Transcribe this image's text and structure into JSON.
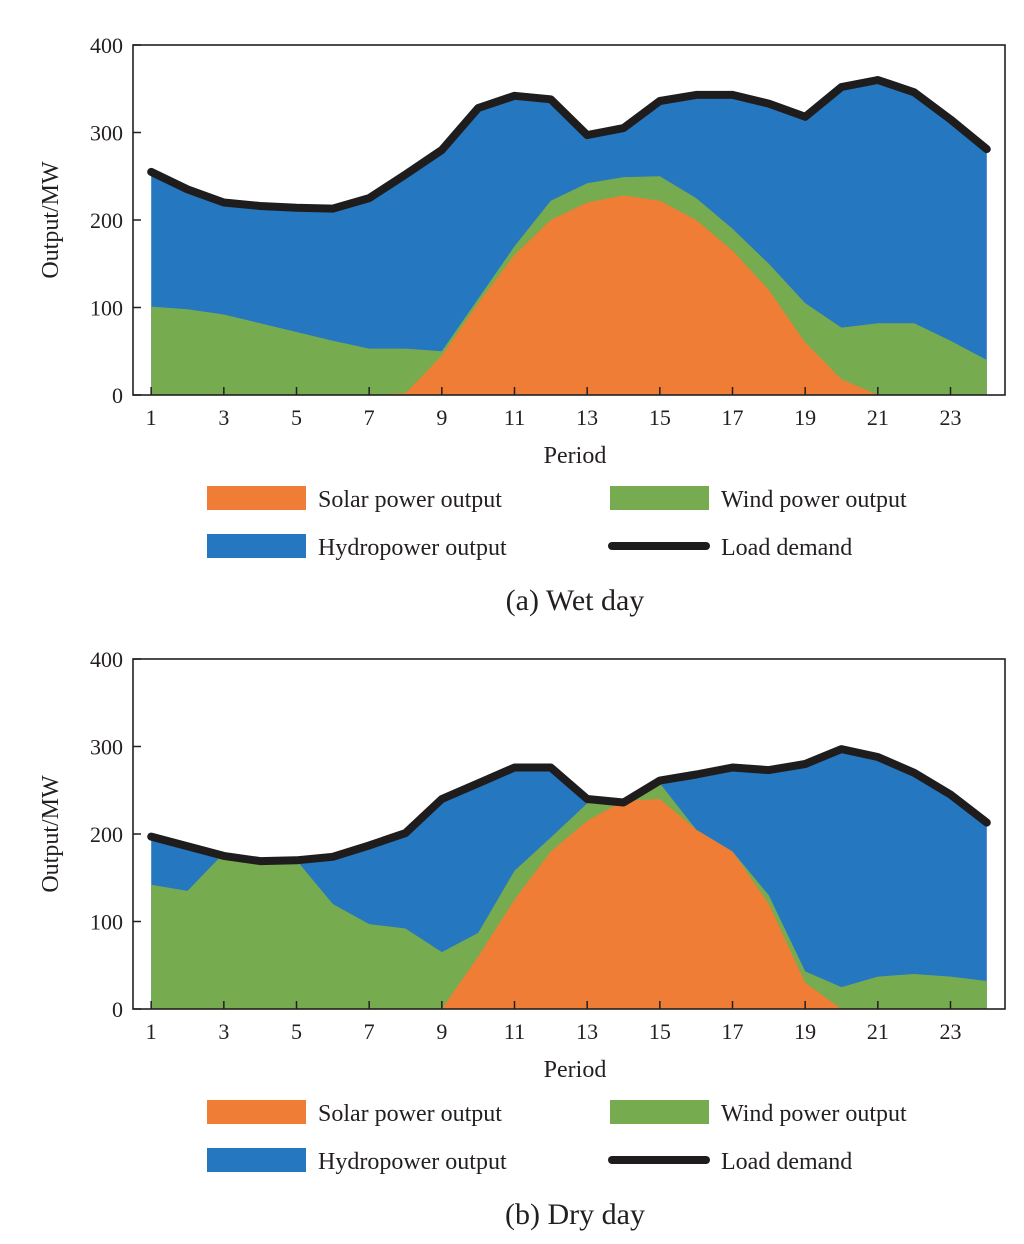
{
  "colors": {
    "solar": "#ef7d35",
    "wind": "#77ab50",
    "hydro": "#2577bf",
    "load": "#1f1c1d"
  },
  "chart_data": [
    {
      "type": "area",
      "title": "(a) Wet day",
      "xlabel": "Period",
      "ylabel": "Output/MW",
      "xlim": [
        0.5,
        24.5
      ],
      "ylim": [
        0,
        400
      ],
      "xticks": [
        1,
        3,
        5,
        7,
        9,
        11,
        13,
        15,
        17,
        19,
        21,
        23
      ],
      "yticks": [
        0,
        100,
        200,
        300,
        400
      ],
      "x": [
        1,
        2,
        3,
        4,
        5,
        6,
        7,
        8,
        9,
        10,
        11,
        12,
        13,
        14,
        15,
        16,
        17,
        18,
        19,
        20,
        21,
        22,
        23,
        24
      ],
      "series": [
        {
          "name": "Solar power output",
          "key": "solar",
          "kind": "area",
          "values": [
            0,
            0,
            0,
            0,
            0,
            0,
            0,
            2,
            45,
            105,
            160,
            200,
            220,
            228,
            222,
            200,
            165,
            120,
            60,
            18,
            0,
            0,
            0,
            0
          ]
        },
        {
          "name": "Wind power output",
          "key": "wind",
          "kind": "area",
          "values": [
            101,
            98,
            92,
            82,
            72,
            62,
            53,
            53,
            50,
            110,
            170,
            222,
            242,
            249,
            250,
            225,
            190,
            150,
            105,
            77,
            82,
            82,
            62,
            40
          ]
        },
        {
          "name": "Hydropower output",
          "key": "hydro",
          "kind": "area",
          "values": [
            255,
            235,
            220,
            216,
            214,
            213,
            225,
            252,
            280,
            328,
            342,
            338,
            297,
            305,
            336,
            343,
            343,
            333,
            318,
            352,
            360,
            346,
            315,
            281
          ]
        },
        {
          "name": "Load demand",
          "key": "load",
          "kind": "line",
          "values": [
            255,
            235,
            220,
            216,
            214,
            213,
            225,
            252,
            280,
            328,
            342,
            338,
            297,
            305,
            336,
            343,
            343,
            333,
            318,
            352,
            360,
            346,
            315,
            281
          ]
        }
      ],
      "legend": [
        "Solar power output",
        "Wind power output",
        "Hydropower output",
        "Load demand"
      ]
    },
    {
      "type": "area",
      "title": "(b) Dry day",
      "xlabel": "Period",
      "ylabel": "Output/MW",
      "xlim": [
        0.5,
        24.5
      ],
      "ylim": [
        0,
        400
      ],
      "xticks": [
        1,
        3,
        5,
        7,
        9,
        11,
        13,
        15,
        17,
        19,
        21,
        23
      ],
      "yticks": [
        0,
        100,
        200,
        300,
        400
      ],
      "x": [
        1,
        2,
        3,
        4,
        5,
        6,
        7,
        8,
        9,
        10,
        11,
        12,
        13,
        14,
        15,
        16,
        17,
        18,
        19,
        20,
        21,
        22,
        23,
        24
      ],
      "series": [
        {
          "name": "Solar power output",
          "key": "solar",
          "kind": "area",
          "values": [
            0,
            0,
            0,
            0,
            0,
            0,
            0,
            0,
            0,
            60,
            125,
            180,
            215,
            238,
            240,
            205,
            180,
            120,
            30,
            0,
            0,
            0,
            0,
            0
          ]
        },
        {
          "name": "Wind power output",
          "key": "wind",
          "kind": "area",
          "values": [
            142,
            135,
            178,
            168,
            170,
            120,
            97,
            92,
            65,
            87,
            158,
            196,
            235,
            238,
            258,
            205,
            180,
            130,
            43,
            25,
            37,
            40,
            37,
            32
          ]
        },
        {
          "name": "Hydropower output",
          "key": "hydro",
          "kind": "area",
          "values": [
            197,
            186,
            175,
            169,
            170,
            174,
            187,
            201,
            240,
            258,
            276,
            276,
            240,
            236,
            261,
            268,
            276,
            273,
            280,
            297,
            288,
            270,
            245,
            213
          ]
        },
        {
          "name": "Load demand",
          "key": "load",
          "kind": "line",
          "values": [
            197,
            186,
            175,
            169,
            170,
            174,
            187,
            201,
            240,
            258,
            276,
            276,
            240,
            236,
            261,
            268,
            276,
            273,
            280,
            297,
            288,
            270,
            245,
            213
          ]
        }
      ],
      "legend": [
        "Solar power output",
        "Wind power output",
        "Hydropower output",
        "Load demand"
      ]
    }
  ]
}
